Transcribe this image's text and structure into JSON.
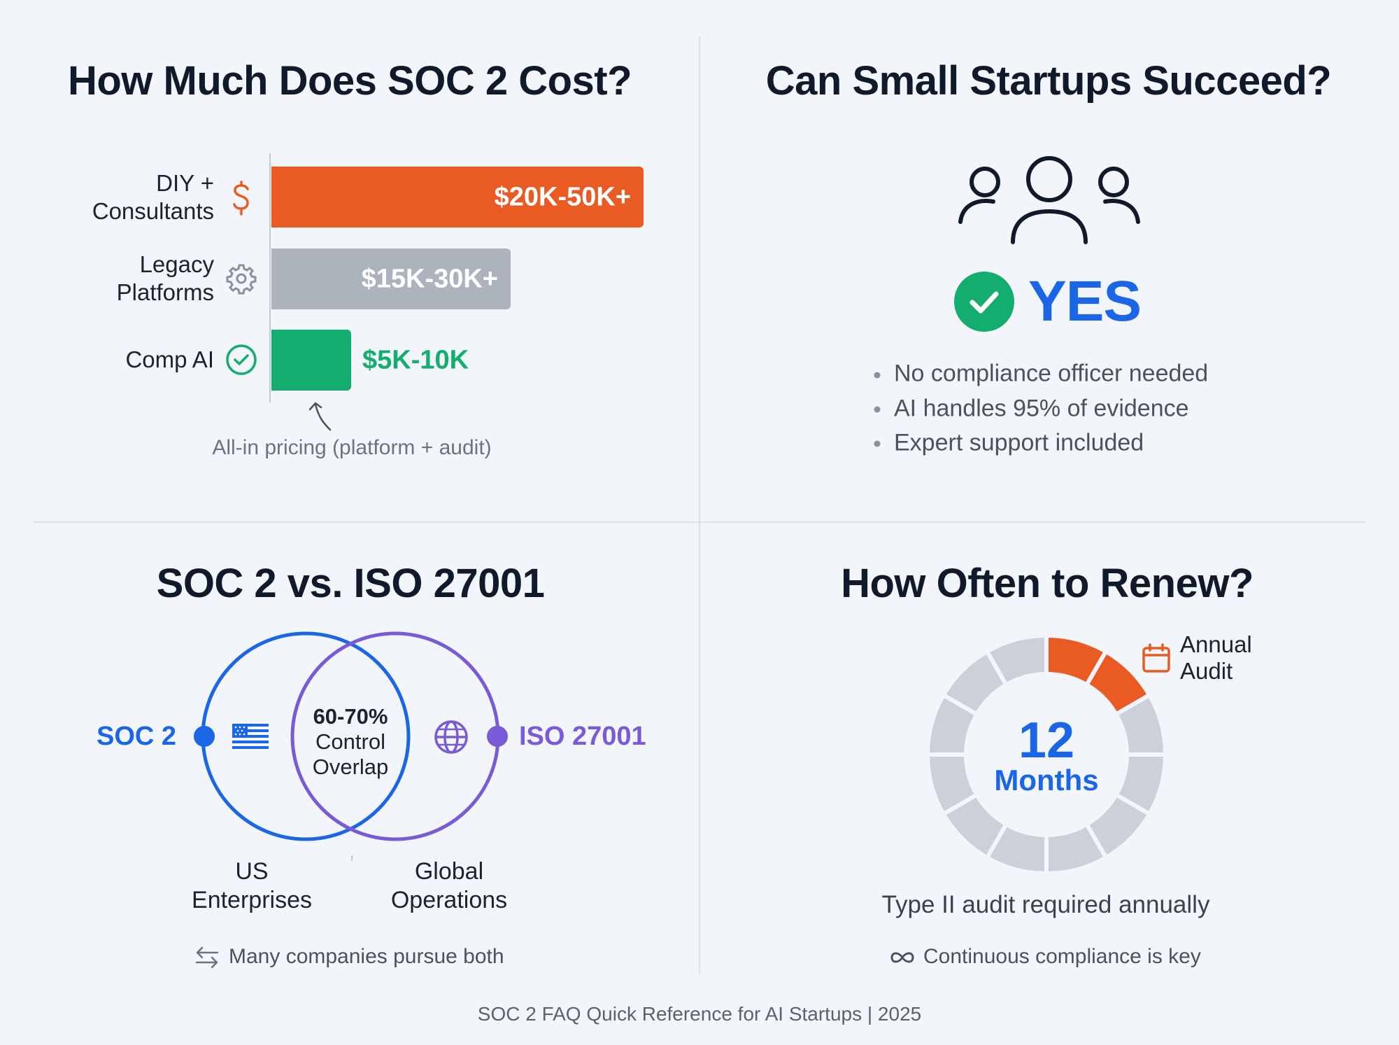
{
  "colors": {
    "orange": "#ea5b24",
    "gray": "#adb3bd",
    "green": "#12ad6f",
    "blue": "#1b66e6",
    "purple": "#7a5ad6",
    "segment_gray": "#ccd1d9"
  },
  "cost": {
    "title": "How Much Does SOC 2 Cost?",
    "caption": "All-in pricing (platform + audit)",
    "bars": [
      {
        "label_line1": "DIY +",
        "label_line2": "Consultants",
        "value": "$20K-50K+",
        "icon": "dollar-icon"
      },
      {
        "label_line1": "Legacy",
        "label_line2": "Platforms",
        "value": "$15K-30K+",
        "icon": "gear-icon"
      },
      {
        "label_line1": "",
        "label_line2": "Comp AI",
        "value": "$5K-10K",
        "icon": "check-circle-icon"
      }
    ]
  },
  "chart_data": {
    "type": "bar",
    "orientation": "horizontal",
    "title": "How Much Does SOC 2 Cost?",
    "categories": [
      "DIY + Consultants",
      "Legacy Platforms",
      "Comp AI"
    ],
    "ranges_k_usd": [
      [
        20,
        50
      ],
      [
        15,
        30
      ],
      [
        5,
        10
      ]
    ],
    "values": [
      35,
      22.5,
      7.5
    ],
    "value_labels": [
      "$20K-50K+",
      "$15K-30K+",
      "$5K-10K"
    ]
  },
  "startups": {
    "title": "Can Small Startups Succeed?",
    "answer": "YES",
    "bullets": [
      "No compliance officer needed",
      "AI handles 95% of evidence",
      "Expert support included"
    ]
  },
  "compare": {
    "title": "SOC 2 vs. ISO 27001",
    "left_label": "SOC 2",
    "right_label": "ISO 27001",
    "overlap_pct": "60-70%",
    "overlap_line2": "Control",
    "overlap_line3": "Overlap",
    "left_use_1": "US",
    "left_use_2": "Enterprises",
    "right_use_1": "Global",
    "right_use_2": "Operations",
    "note": "Many companies pursue both"
  },
  "renew": {
    "title": "How Often to Renew?",
    "number": "12",
    "unit": "Months",
    "segments_total": 12,
    "segments_highlighted": 2,
    "badge_line1": "Annual",
    "badge_line2": "Audit",
    "subtitle": "Type II audit required annually",
    "note": "Continuous compliance is key"
  },
  "footer": "SOC 2 FAQ Quick Reference for AI Startups | 2025"
}
